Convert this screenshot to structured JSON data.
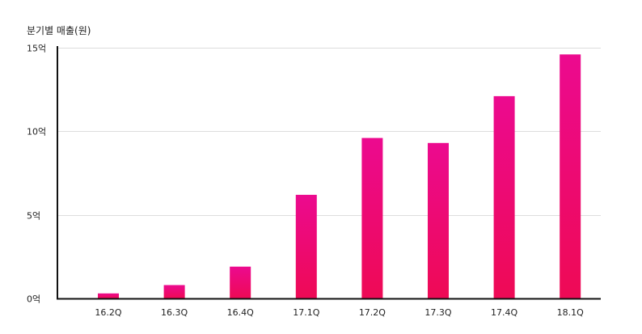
{
  "chart_data": {
    "type": "bar",
    "title": "",
    "xlabel": "",
    "ylabel": "분기별 매출(원)",
    "categories": [
      "16.2Q",
      "16.3Q",
      "16.4Q",
      "17.1Q",
      "17.2Q",
      "17.3Q",
      "17.4Q",
      "18.1Q"
    ],
    "values": [
      0.3,
      0.8,
      1.9,
      6.2,
      9.6,
      9.3,
      12.1,
      14.6
    ],
    "value_unit": "억",
    "ylim": [
      0,
      15
    ],
    "yticks": [
      0,
      5,
      10,
      15
    ],
    "ytick_labels": [
      "0억",
      "5억",
      "10억",
      "15억"
    ],
    "grid": true,
    "legend": "none",
    "colors": {
      "bar_top": "#ec0a8f",
      "bar_bottom": "#ee0a55",
      "grid": "#dddddd",
      "axis": "#111111",
      "text": "#222222"
    }
  }
}
